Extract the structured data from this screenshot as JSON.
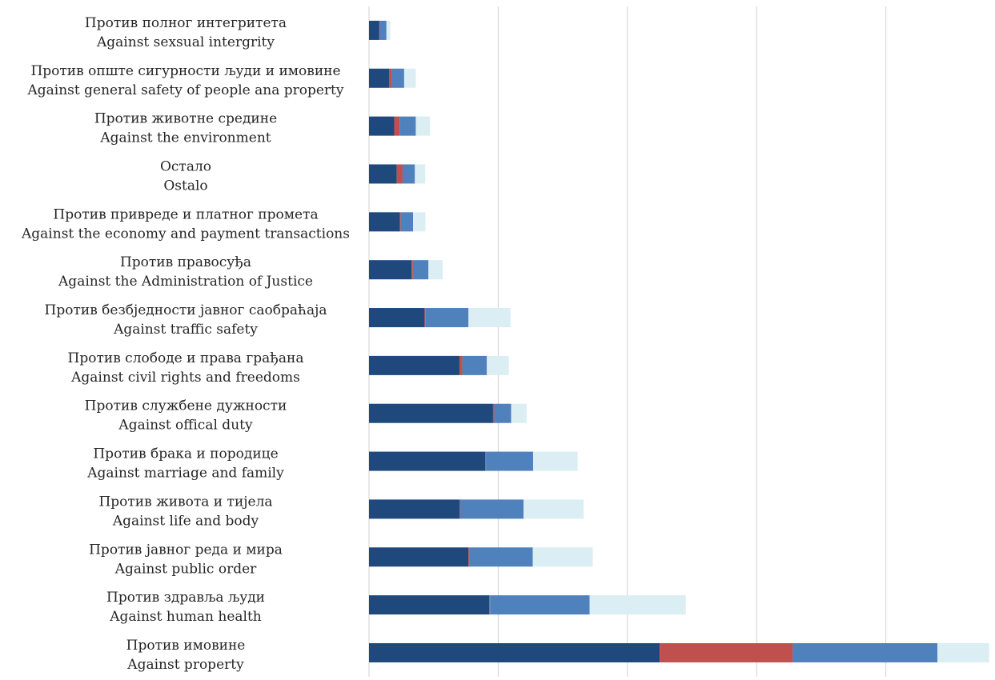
{
  "chart_data": {
    "type": "bar",
    "orientation": "horizontal",
    "stacked": true,
    "title": "",
    "xlabel": "",
    "ylabel": "",
    "xlim": [
      0,
      4800
    ],
    "x_gridline_step": 1000,
    "grid": "vertical",
    "legend": "none",
    "categories": [
      {
        "line1": "Против полног интегритета",
        "line2": "Against sexsual intergrity"
      },
      {
        "line1": "Против опште сигурности људи и имовине",
        "line2": "Against general safety of people ana property"
      },
      {
        "line1": "Против животне средине",
        "line2": "Against the environment"
      },
      {
        "line1": "Остало",
        "line2": "Ostalo"
      },
      {
        "line1": "Против привреде и платног промета",
        "line2": "Against the economy and payment transactions"
      },
      {
        "line1": "Против правосуђа",
        "line2": "Against the Administration of Justice"
      },
      {
        "line1": "Против безбједности јавног саобраћаја",
        "line2": "Against traffic safety"
      },
      {
        "line1": "Против слободе и права грађана",
        "line2": "Against civil rights and freedoms"
      },
      {
        "line1": "Против службене дужности",
        "line2": "Against offical duty"
      },
      {
        "line1": "Против брака и породице",
        "line2": "Against marriage and family"
      },
      {
        "line1": "Против живота и тијела",
        "line2": "Against life and body"
      },
      {
        "line1": "Против јавног реда и мира",
        "line2": "Against public order"
      },
      {
        "line1": "Против здравља људи",
        "line2": "Against human health"
      },
      {
        "line1": "Против имовине",
        "line2": "Against property"
      }
    ],
    "series": [
      {
        "color": "#1f497d",
        "values": [
          80,
          155,
          195,
          215,
          240,
          330,
          430,
          700,
          960,
          900,
          700,
          770,
          930,
          2250
        ]
      },
      {
        "color": "#c0504d",
        "values": [
          5,
          22,
          42,
          45,
          6,
          10,
          5,
          22,
          10,
          5,
          6,
          7,
          7,
          1030
        ]
      },
      {
        "color": "#4f81bd",
        "values": [
          50,
          95,
          125,
          95,
          95,
          120,
          335,
          190,
          130,
          365,
          490,
          490,
          770,
          1120
        ]
      },
      {
        "color": "#dbeef4",
        "values": [
          30,
          90,
          110,
          80,
          95,
          110,
          325,
          170,
          120,
          345,
          465,
          465,
          745,
          400
        ]
      }
    ]
  }
}
